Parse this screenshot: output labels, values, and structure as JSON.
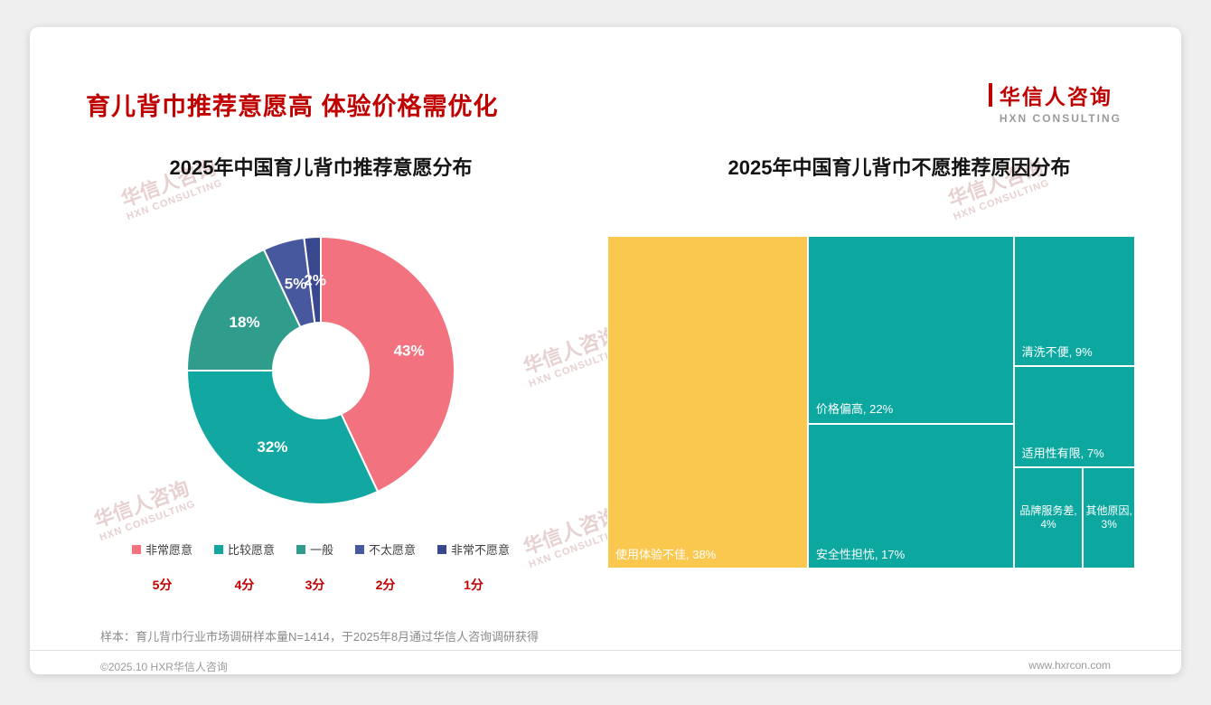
{
  "page": {
    "title": "育儿背巾推荐意愿高 体验价格需优化",
    "logo": {
      "cn": "华信人咨询",
      "en": "HXN CONSULTING"
    },
    "watermark": {
      "cn": "华信人咨询",
      "en": "HXN CONSULTING"
    },
    "sample_note": "样本：育儿背巾行业市场调研样本量N=1414，于2025年8月通过华信人咨询调研获得",
    "footer": {
      "left": "©2025.10 HXR华信人咨询",
      "right": "www.hxrcon.com"
    }
  },
  "chart_data": [
    {
      "type": "pie",
      "subtype": "donut",
      "title": "2025年中国育儿背巾推荐意愿分布",
      "categories": [
        "非常愿意",
        "比较愿意",
        "一般",
        "不太愿意",
        "非常不愿意"
      ],
      "values": [
        43,
        32,
        18,
        5,
        2
      ],
      "labels": [
        "43%",
        "32%",
        "18%",
        "5%",
        "2%"
      ],
      "scores": [
        "5分",
        "4分",
        "3分",
        "2分",
        "1分"
      ],
      "colors": [
        "#F2737F",
        "#12A7A0",
        "#2F9C8C",
        "#47589E",
        "#39478F"
      ],
      "legend_position": "bottom"
    },
    {
      "type": "heatmap",
      "subtype": "treemap",
      "title": "2025年中国育儿背巾不愿推荐原因分布",
      "cells": [
        {
          "label": "使用体验不佳, 38%",
          "value": 38,
          "color": "#FBC84F"
        },
        {
          "label": "价格偏高, 22%",
          "value": 22,
          "color": "#0CA8A0"
        },
        {
          "label": "安全性担忧, 17%",
          "value": 17,
          "color": "#0CA8A0"
        },
        {
          "label": "清洗不便, 9%",
          "value": 9,
          "color": "#0CA8A0"
        },
        {
          "label": "适用性有限, 7%",
          "value": 7,
          "color": "#0CA8A0"
        },
        {
          "label": "品牌服务差, 4%",
          "value": 4,
          "color": "#0CA8A0"
        },
        {
          "label": "其他原因, 3%",
          "value": 3,
          "color": "#0CA8A0"
        }
      ]
    }
  ]
}
